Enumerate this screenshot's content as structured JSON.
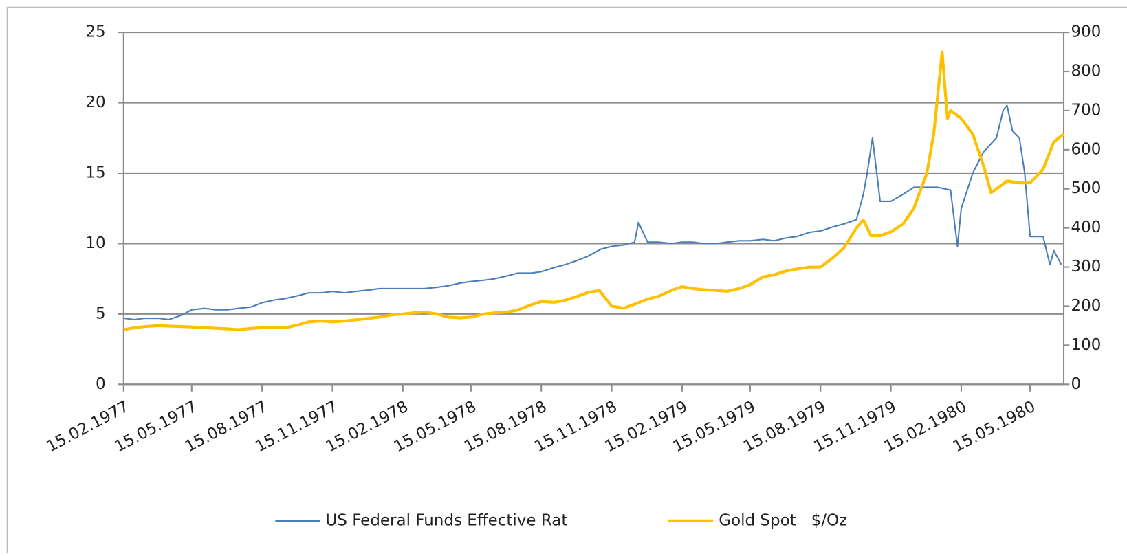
{
  "chart_data": {
    "type": "line",
    "xlim": [
      "15.02.1977",
      "28.06.1980"
    ],
    "xticks": [
      "15.02.1977",
      "15.05.1977",
      "15.08.1977",
      "15.11.1977",
      "15.02.1978",
      "15.05.1978",
      "15.08.1978",
      "15.11.1978",
      "15.02.1979",
      "15.05.1979",
      "15.08.1979",
      "15.11.1979",
      "15.02.1980",
      "15.05.1980"
    ],
    "ylim": [
      0,
      25
    ],
    "yticks": [
      0,
      5,
      10,
      15,
      20,
      25
    ],
    "y2lim": [
      0,
      900
    ],
    "y2ticks": [
      0,
      100,
      200,
      300,
      400,
      500,
      600,
      700,
      800,
      900
    ],
    "grid": true,
    "legend": "bottom",
    "series": [
      {
        "name": "US Federal Funds Effective Rat",
        "color": "#4a7ebb",
        "x": [
          "15.02.1977",
          "01.03.1977",
          "15.03.1977",
          "01.04.1977",
          "15.04.1977",
          "01.05.1977",
          "15.05.1977",
          "01.06.1977",
          "15.06.1977",
          "01.07.1977",
          "15.07.1977",
          "01.08.1977",
          "15.08.1977",
          "01.09.1977",
          "15.09.1977",
          "01.10.1977",
          "15.10.1977",
          "01.11.1977",
          "15.11.1977",
          "01.12.1977",
          "15.12.1977",
          "01.01.1978",
          "15.01.1978",
          "01.02.1978",
          "15.02.1978",
          "01.03.1978",
          "15.03.1978",
          "01.04.1978",
          "15.04.1978",
          "01.05.1978",
          "15.05.1978",
          "01.06.1978",
          "15.06.1978",
          "01.07.1978",
          "15.07.1978",
          "01.08.1978",
          "15.08.1978",
          "01.09.1978",
          "15.09.1978",
          "01.10.1978",
          "15.10.1978",
          "01.11.1978",
          "15.11.1978",
          "01.12.1978",
          "15.12.1978",
          "20.12.1978",
          "01.01.1979",
          "15.01.1979",
          "01.02.1979",
          "15.02.1979",
          "01.03.1979",
          "15.03.1979",
          "01.04.1979",
          "15.04.1979",
          "01.05.1979",
          "15.05.1979",
          "01.06.1979",
          "15.06.1979",
          "01.07.1979",
          "15.07.1979",
          "01.08.1979",
          "15.08.1979",
          "01.09.1979",
          "15.09.1979",
          "01.10.1979",
          "10.10.1979",
          "15.10.1979",
          "22.10.1979",
          "01.11.1979",
          "15.11.1979",
          "01.12.1979",
          "15.12.1979",
          "01.01.1980",
          "15.01.1980",
          "01.02.1980",
          "10.02.1980",
          "15.02.1980",
          "01.03.1980",
          "15.03.1980",
          "01.04.1980",
          "10.04.1980",
          "15.04.1980",
          "22.04.1980",
          "01.05.1980",
          "08.05.1980",
          "15.05.1980",
          "01.06.1980",
          "10.06.1980",
          "15.06.1980",
          "25.06.1980"
        ],
        "values": [
          4.7,
          4.6,
          4.7,
          4.7,
          4.6,
          4.9,
          5.3,
          5.4,
          5.3,
          5.3,
          5.4,
          5.5,
          5.8,
          6.0,
          6.1,
          6.3,
          6.5,
          6.5,
          6.6,
          6.5,
          6.6,
          6.7,
          6.8,
          6.8,
          6.8,
          6.8,
          6.8,
          6.9,
          7.0,
          7.2,
          7.3,
          7.4,
          7.5,
          7.7,
          7.9,
          7.9,
          8.0,
          8.3,
          8.5,
          8.8,
          9.1,
          9.6,
          9.8,
          9.9,
          10.1,
          11.5,
          10.1,
          10.1,
          10.0,
          10.1,
          10.1,
          10.0,
          10.0,
          10.1,
          10.2,
          10.2,
          10.3,
          10.2,
          10.4,
          10.5,
          10.8,
          10.9,
          11.2,
          11.4,
          11.7,
          13.5,
          15,
          17.5,
          13,
          13,
          13.5,
          14,
          14.0,
          14.0,
          13.8,
          9.8,
          12.5,
          15,
          16.5,
          17.5,
          19.5,
          19.8,
          18,
          17.5,
          15,
          10.5,
          10.5,
          8.5,
          9.5,
          8.5
        ]
      },
      {
        "name": "Gold Spot   $/Oz",
        "color": "#ffc000",
        "axis": "y2",
        "x": [
          "15.02.1977",
          "01.03.1977",
          "15.03.1977",
          "01.04.1977",
          "15.05.1977",
          "01.06.1977",
          "01.07.1977",
          "15.07.1977",
          "01.08.1977",
          "15.08.1977",
          "01.09.1977",
          "15.09.1977",
          "01.10.1977",
          "15.10.1977",
          "01.11.1977",
          "15.11.1977",
          "01.12.1977",
          "15.12.1977",
          "15.01.1978",
          "01.02.1978",
          "15.02.1978",
          "01.03.1978",
          "15.03.1978",
          "01.04.1978",
          "15.04.1978",
          "01.05.1978",
          "15.05.1978",
          "01.06.1978",
          "15.06.1978",
          "01.07.1978",
          "15.07.1978",
          "01.08.1978",
          "15.08.1978",
          "01.09.1978",
          "15.09.1978",
          "01.10.1978",
          "15.10.1978",
          "30.10.1978",
          "15.11.1978",
          "01.12.1978",
          "15.12.1978",
          "01.01.1979",
          "15.01.1979",
          "01.02.1979",
          "15.02.1979",
          "01.03.1979",
          "15.03.1979",
          "01.04.1979",
          "15.04.1979",
          "01.05.1979",
          "15.05.1979",
          "01.06.1979",
          "15.06.1979",
          "01.07.1979",
          "15.07.1979",
          "01.08.1979",
          "15.08.1979",
          "01.09.1979",
          "15.09.1979",
          "01.10.1979",
          "10.10.1979",
          "20.10.1979",
          "01.11.1979",
          "15.11.1979",
          "01.12.1979",
          "15.12.1979",
          "01.01.1980",
          "10.01.1980",
          "21.01.1980",
          "28.01.1980",
          "01.02.1980",
          "15.02.1980",
          "01.03.1980",
          "15.03.1980",
          "25.03.1980",
          "01.04.1980",
          "15.04.1980",
          "01.05.1980",
          "15.05.1980",
          "01.06.1980",
          "15.06.1980",
          "28.06.1980"
        ],
        "values": [
          140,
          145,
          148,
          150,
          147,
          145,
          142,
          140,
          143,
          145,
          146,
          145,
          152,
          160,
          162,
          160,
          162,
          165,
          172,
          178,
          180,
          183,
          185,
          180,
          172,
          170,
          172,
          180,
          183,
          185,
          190,
          203,
          212,
          210,
          215,
          225,
          235,
          240,
          200,
          195,
          205,
          218,
          225,
          240,
          250,
          245,
          242,
          240,
          238,
          245,
          255,
          275,
          280,
          290,
          295,
          300,
          300,
          325,
          350,
          400,
          420,
          380,
          380,
          390,
          410,
          450,
          540,
          640,
          850,
          680,
          700,
          680,
          640,
          560,
          490,
          500,
          520,
          515,
          515,
          550,
          620,
          640
        ]
      }
    ]
  }
}
